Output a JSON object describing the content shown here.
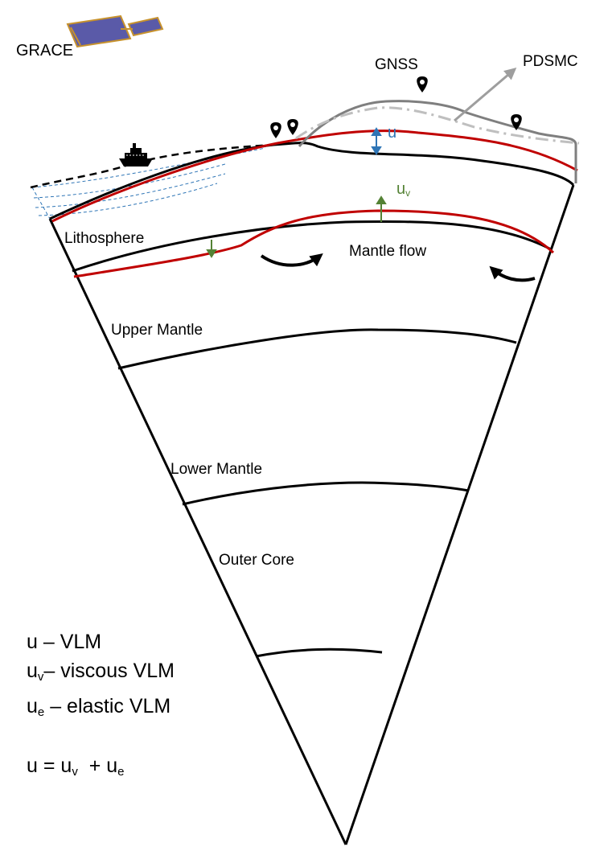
{
  "labels": {
    "grace": "GRACE",
    "gnss": "GNSS",
    "pdsmc": "PDSMC",
    "u_arrow": "u",
    "uv_arrow": {
      "base": "u",
      "sub": "v"
    },
    "lithosphere": "Lithosphere",
    "mantle_flow": "Mantle flow",
    "upper_mantle": "Upper Mantle",
    "lower_mantle": "Lower Mantle",
    "outer_core": "Outer Core"
  },
  "legend": {
    "line1": {
      "sym": "u",
      "text": " – VLM"
    },
    "line2": {
      "sym": "u",
      "sub": "v",
      "text": "– viscous VLM"
    },
    "line3": {
      "sym": "u",
      "sub": "e",
      "text": " – elastic VLM"
    },
    "equation": {
      "lhs": "u = u",
      "sub1": "v",
      "plus": "  + u",
      "sub2": "e"
    }
  },
  "colors": {
    "outline": "#000000",
    "deformed": "#c00000",
    "u_arrow": "#2e75b6",
    "uv_arrow": "#548235",
    "gnss_track": "#7f7f7f",
    "pdsmc_track": "#bfbfbf",
    "water_lines": "#2e75b6"
  },
  "icons": [
    "satellite-icon",
    "ship-icon",
    "location-pin-icon",
    "curved-arrow-icon"
  ]
}
